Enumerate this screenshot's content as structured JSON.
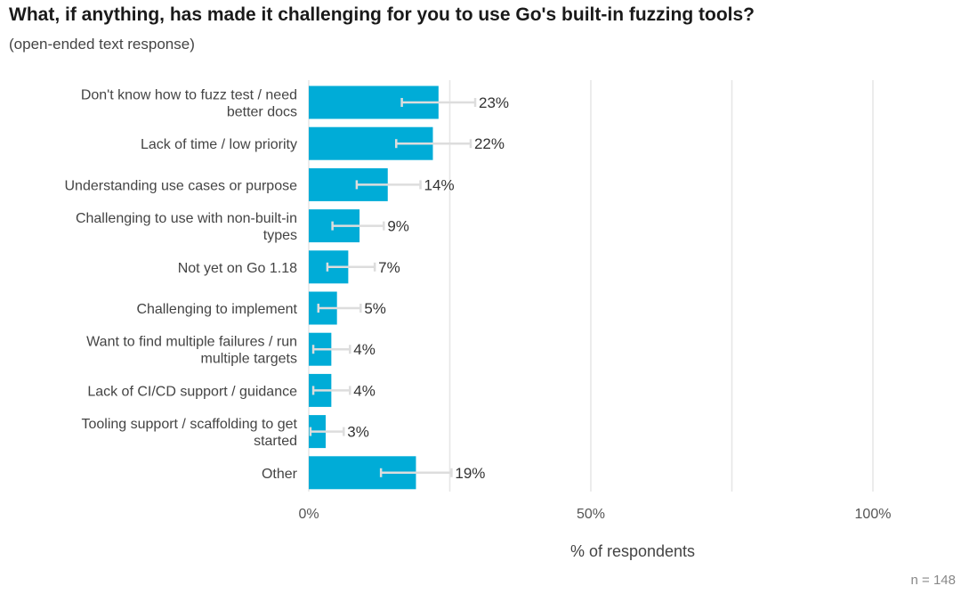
{
  "chart_data": {
    "type": "bar",
    "orientation": "horizontal",
    "title": "What, if anything, has made it challenging for you to use Go's built-in fuzzing tools?",
    "subtitle": "(open-ended text response)",
    "categories": [
      "Don't know how to fuzz test / need better docs",
      "Lack of time / low priority",
      "Understanding use cases or purpose",
      "Challenging to use with non-built-in types",
      "Not yet on Go 1.18",
      "Challenging to implement",
      "Want to find multiple failures / run multiple targets",
      "Lack of CI/CD support / guidance",
      "Tooling support / scaffolding to get started",
      "Other"
    ],
    "category_lines": [
      [
        "Don't know how to fuzz test / need",
        "better docs"
      ],
      [
        "Lack of time / low priority"
      ],
      [
        "Understanding use cases or purpose"
      ],
      [
        "Challenging to use with non-built-in",
        "types"
      ],
      [
        "Not yet on Go 1.18"
      ],
      [
        "Challenging to implement"
      ],
      [
        "Want to find multiple failures / run",
        "multiple targets"
      ],
      [
        "Lack of CI/CD support / guidance"
      ],
      [
        "Tooling support / scaffolding to get",
        "started"
      ],
      [
        "Other"
      ]
    ],
    "values": [
      23,
      22,
      14,
      9,
      7,
      5,
      4,
      4,
      3,
      19
    ],
    "value_labels": [
      "23%",
      "22%",
      "14%",
      "9%",
      "7%",
      "5%",
      "4%",
      "4%",
      "3%",
      "19%"
    ],
    "error_low": [
      16.5,
      15.5,
      8.5,
      4.2,
      3.3,
      1.7,
      0.8,
      0.8,
      0.3,
      12.8
    ],
    "error_high": [
      29.5,
      28.7,
      19.8,
      13.3,
      11.7,
      9.2,
      7.3,
      7.3,
      6.2,
      25.3
    ],
    "xlim": [
      0,
      100
    ],
    "xticks": [
      0,
      50,
      100
    ],
    "xtick_labels": [
      "0%",
      "50%",
      "100%"
    ],
    "gridlines": [
      0,
      25,
      50,
      75,
      100
    ],
    "xlabel": "% of respondents",
    "bar_color": "#00acd7",
    "error_bar_color": "#dddddd",
    "gridline_color": "#e6e6e6",
    "n_label": "n =  148"
  }
}
